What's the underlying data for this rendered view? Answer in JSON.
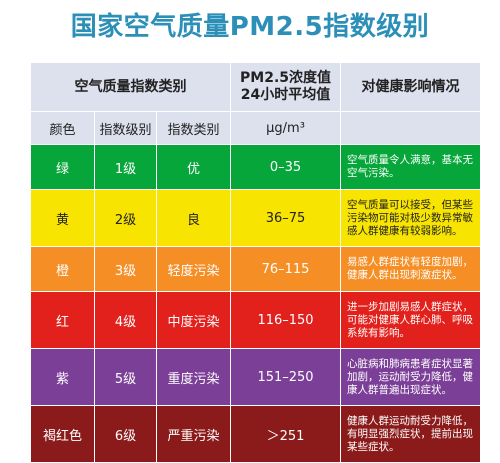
{
  "title": "国家空气质量PM2.5指数级别",
  "header": {
    "category": "空气质量指数类别",
    "pm_line1": "PM2.5浓度值",
    "pm_line2": "24小时平均值",
    "health": "对健康影响情况"
  },
  "subheader": {
    "color": "颜色",
    "level": "指数级别",
    "class": "指数类别",
    "unit": "μg/m³"
  },
  "rows": [
    {
      "color_name": "绿",
      "level": "1级",
      "class": "优",
      "range": "0–35",
      "health": "空气质量令人满意，基本无空气污染。",
      "bg": "#06a63a"
    },
    {
      "color_name": "黄",
      "level": "2级",
      "class": "良",
      "range": "36–75",
      "health": "空气质量可以接受，但某些污染物可能对极少数异常敏感人群健康有较弱影响。",
      "bg": "#f7e400"
    },
    {
      "color_name": "橙",
      "level": "3级",
      "class": "轻度污染",
      "range": "76–115",
      "health": "易感人群症状有轻度加剧，健康人群出现刺激症状。",
      "bg": "#f58e25"
    },
    {
      "color_name": "红",
      "level": "4级",
      "class": "中度污染",
      "range": "116–150",
      "health": "进一步加剧易感人群症状，可能对健康人群心肺、呼吸系统有影响。",
      "bg": "#e2201c"
    },
    {
      "color_name": "紫",
      "level": "5级",
      "class": "重度污染",
      "range": "151–250",
      "health": "心脏病和肺病患者症状显著加剧，运动耐受力降低，健康人群普遍出现症状。",
      "bg": "#7b3f98"
    },
    {
      "color_name": "褐红色",
      "level": "6级",
      "class": "严重污染",
      "range": "＞251",
      "health": "健康人群运动耐受力降低，有明显强烈症状，提前出现某些症状。",
      "bg": "#8b1a1a"
    }
  ]
}
